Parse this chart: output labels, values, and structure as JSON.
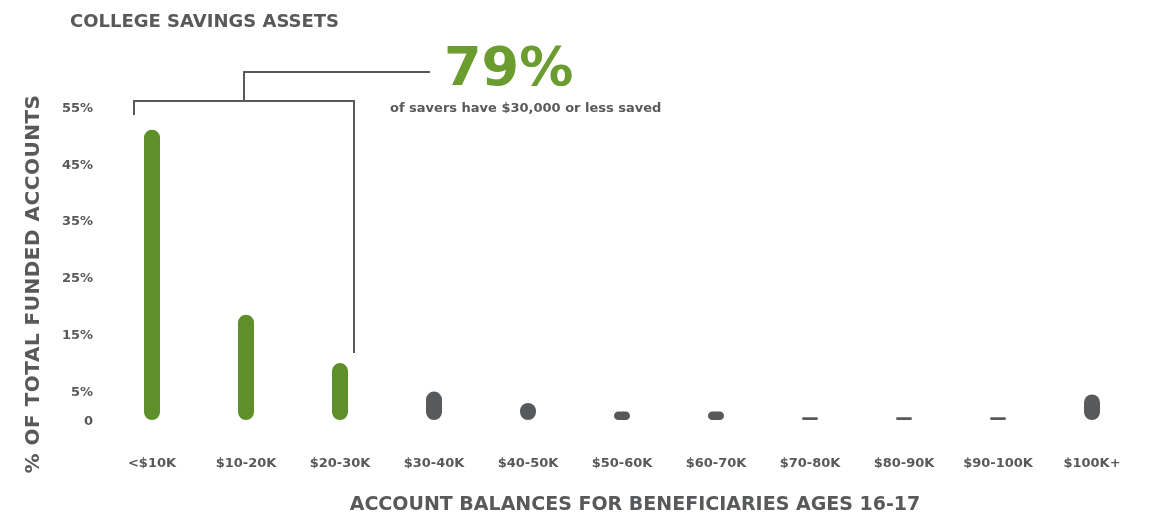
{
  "chart_data": {
    "type": "bar",
    "title": "COLLEGE SAVINGS ASSETS",
    "xlabel": "ACCOUNT BALANCES FOR BENEFICIARIES AGES 16-17",
    "ylabel": "% OF TOTAL FUNDED ACCOUNTS",
    "categories": [
      "<$10K",
      "$10-20K",
      "$20-30K",
      "$30-40K",
      "$40-50K",
      "$50-60K",
      "$60-70K",
      "$70-80K",
      "$80-90K",
      "$90-100K",
      "$100K+"
    ],
    "values": [
      51,
      18.5,
      10,
      5,
      3,
      1.5,
      1.5,
      0.5,
      0.5,
      0.5,
      4.5
    ],
    "colors": [
      "#5e8f2a",
      "#5e8f2a",
      "#5e8f2a",
      "#58595b",
      "#58595b",
      "#58595b",
      "#58595b",
      "#58595b",
      "#58595b",
      "#58595b",
      "#58595b"
    ],
    "ylim": [
      0,
      55
    ],
    "yticks": [
      0,
      {
        "value": 5,
        "label": "5%"
      },
      {
        "value": 15,
        "label": "15%"
      },
      {
        "value": 25,
        "label": "25%"
      },
      {
        "value": 35,
        "label": "35%"
      },
      {
        "value": 45,
        "label": "45%"
      },
      {
        "value": 55,
        "label": "55%"
      }
    ],
    "grid": false,
    "legend": false,
    "annotations": [
      "79%",
      "of savers have $30,000 or less saved"
    ]
  }
}
